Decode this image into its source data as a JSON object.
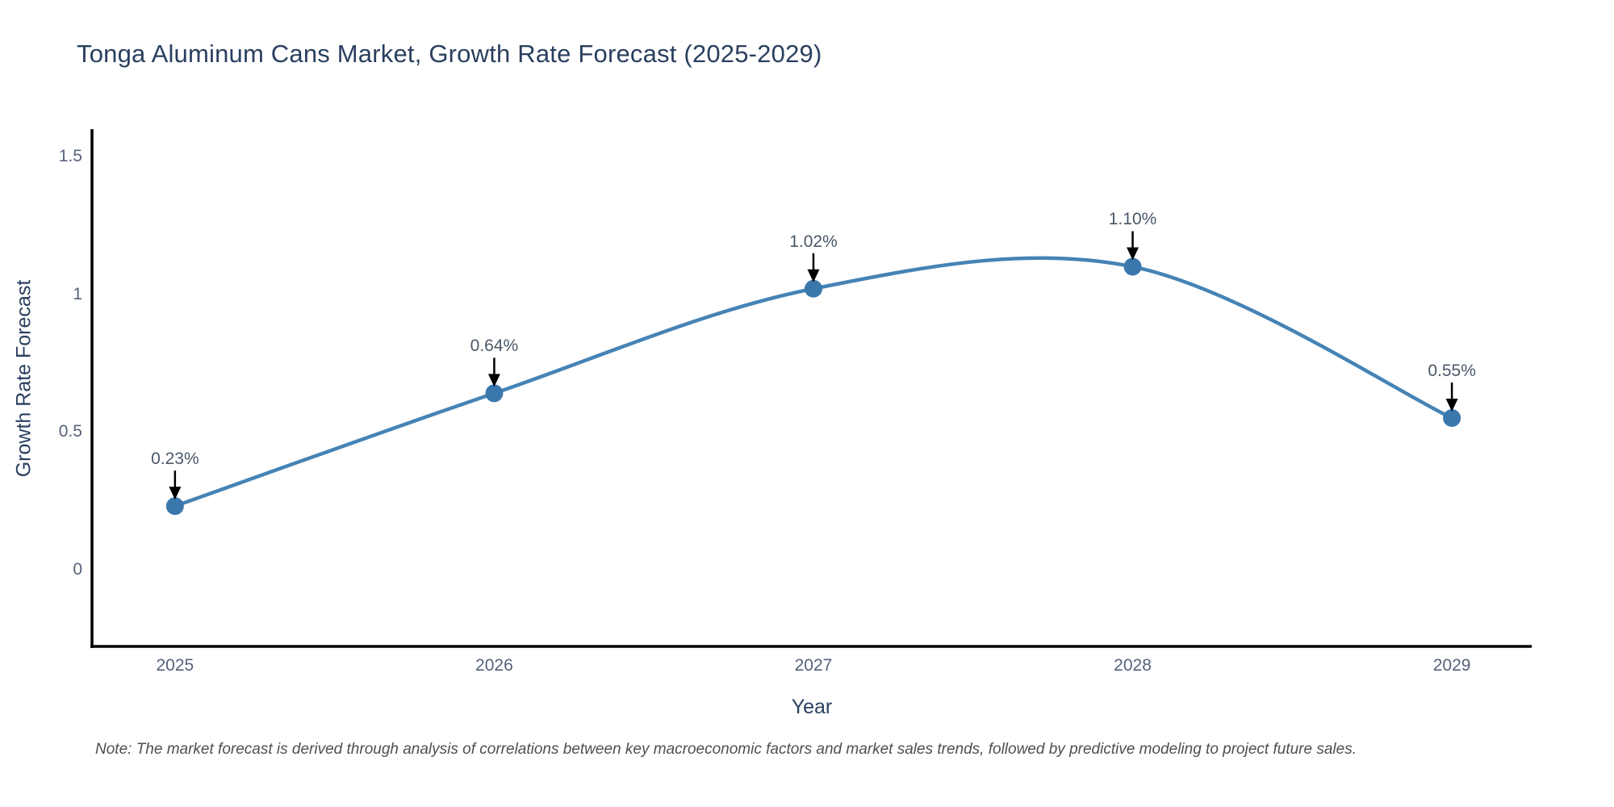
{
  "title": "Tonga Aluminum Cans Market, Growth Rate Forecast (2025-2029)",
  "note": "Note: The market forecast is derived through analysis of correlations between key macroeconomic factors and market sales trends, followed by predictive modeling to project future sales.",
  "chart_data": {
    "type": "line",
    "title": "Tonga Aluminum Cans Market, Growth Rate Forecast (2025-2029)",
    "xlabel": "Year",
    "ylabel": "Growth Rate Forecast",
    "x": [
      2025,
      2026,
      2027,
      2028,
      2029
    ],
    "y": [
      0.23,
      0.64,
      1.02,
      1.1,
      0.55
    ],
    "point_labels": [
      "0.23%",
      "0.64%",
      "1.02%",
      "1.10%",
      "0.55%"
    ],
    "line_shape": "spline",
    "grid": false,
    "legend_position": "none",
    "xlim": [
      2024.74,
      2029.25
    ],
    "ylim": [
      -0.28,
      1.6
    ],
    "yticks": [
      0,
      0.5,
      1,
      1.5
    ],
    "ytick_labels": [
      "0",
      "0.5",
      "1",
      "1.5"
    ],
    "xticks": [
      2025,
      2026,
      2027,
      2028,
      2029
    ],
    "xtick_labels": [
      "2025",
      "2026",
      "2027",
      "2028",
      "2029"
    ],
    "colors": {
      "line": "#4583b5",
      "marker": "#3a77ad",
      "axis_line": "#000000",
      "arrow": "#000000",
      "title_text": "#2a3f5f",
      "tick_text": "#56627a",
      "note_text": "#4f4f4f"
    }
  }
}
